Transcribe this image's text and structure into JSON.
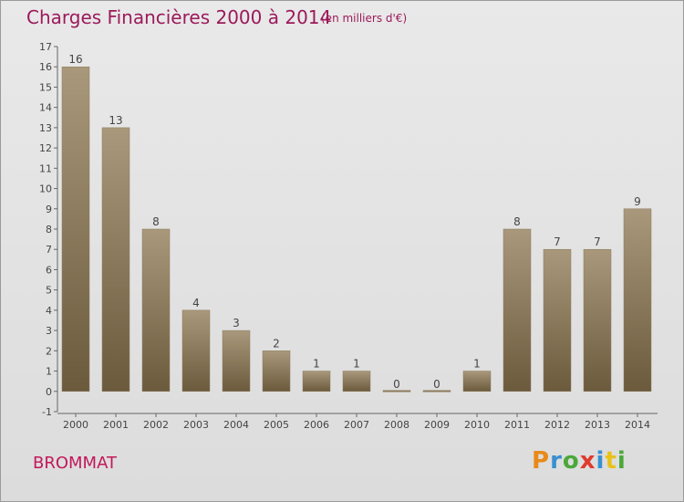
{
  "header": {
    "title": "Charges Financières 2000 à 2014",
    "units": "(en milliers d'€)"
  },
  "footer": {
    "commune": "BROMMAT",
    "brand": {
      "text": "Proxiti",
      "letters": [
        "P",
        "r",
        "o",
        "x",
        "i",
        "t",
        "i"
      ],
      "colors": [
        "#e88a1a",
        "#3a8fd1",
        "#4aa83a",
        "#e03a2e",
        "#3a8fd1",
        "#e8c21a",
        "#4aa83a"
      ]
    }
  },
  "colors": {
    "bar_top": "#a9987b",
    "bar_bottom": "#6b5a3c",
    "title": "#9c1a5a",
    "commune": "#c2185b"
  },
  "chart_data": {
    "type": "bar",
    "categories": [
      "2000",
      "2001",
      "2002",
      "2003",
      "2004",
      "2005",
      "2006",
      "2007",
      "2008",
      "2009",
      "2010",
      "2011",
      "2012",
      "2013",
      "2014"
    ],
    "values": [
      16,
      13,
      8,
      4,
      3,
      2,
      1,
      1,
      0,
      0,
      1,
      8,
      7,
      7,
      9
    ],
    "data_labels": [
      "16",
      "13",
      "8",
      "4",
      "3",
      "2",
      "1",
      "1",
      "0",
      "0",
      "1",
      "8",
      "7",
      "7",
      "9"
    ],
    "title": "Charges Financières 2000 à 2014",
    "xlabel": "",
    "ylabel": "",
    "ylim": [
      -1,
      17
    ],
    "yticks": [
      "-1",
      "0",
      "1",
      "2",
      "3",
      "4",
      "5",
      "6",
      "7",
      "8",
      "9",
      "10",
      "11",
      "12",
      "13",
      "14",
      "15",
      "16",
      "17"
    ],
    "grid": false
  }
}
